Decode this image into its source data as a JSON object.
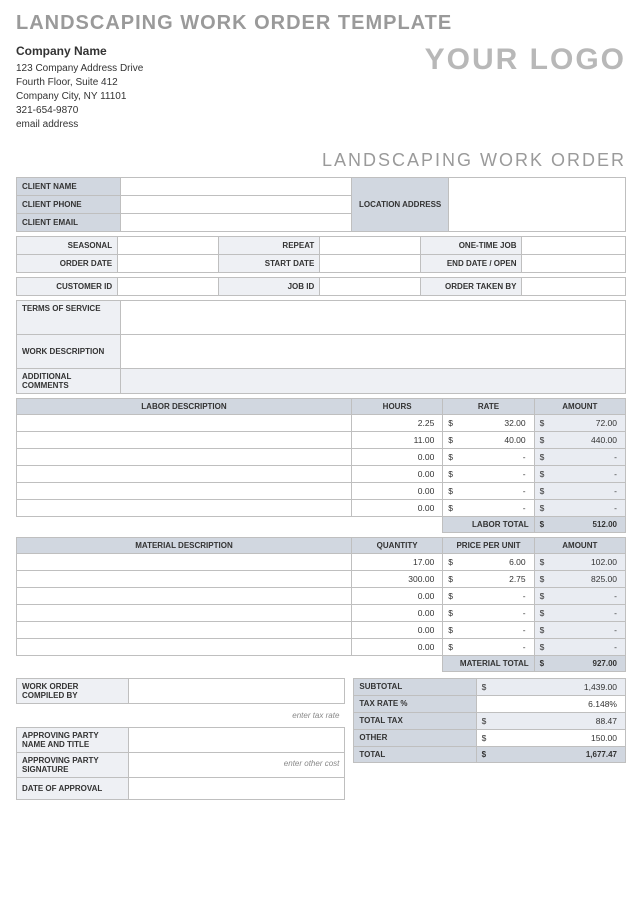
{
  "title": "LANDSCAPING WORK ORDER TEMPLATE",
  "company": {
    "name": "Company Name",
    "addr1": "123 Company Address Drive",
    "addr2": "Fourth Floor, Suite 412",
    "city": "Company City, NY  11101",
    "phone": "321-654-9870",
    "email": "email address"
  },
  "logo": "YOUR LOGO",
  "subtitle": "LANDSCAPING WORK ORDER",
  "client_labels": {
    "name": "CLIENT NAME",
    "phone": "CLIENT PHONE",
    "email": "CLIENT EMAIL",
    "location": "LOCATION ADDRESS"
  },
  "job_labels": {
    "seasonal": "SEASONAL",
    "repeat": "REPEAT",
    "onetime": "ONE-TIME JOB",
    "order_date": "ORDER DATE",
    "start_date": "START DATE",
    "end_date": "END DATE / OPEN",
    "customer_id": "CUSTOMER ID",
    "job_id": "JOB ID",
    "taken_by": "ORDER TAKEN BY"
  },
  "desc_labels": {
    "terms": "TERMS OF SERVICE",
    "work": "WORK DESCRIPTION",
    "comments": "ADDITIONAL COMMENTS"
  },
  "labor": {
    "headers": {
      "desc": "LABOR DESCRIPTION",
      "hours": "HOURS",
      "rate": "RATE",
      "amount": "AMOUNT"
    },
    "rows": [
      {
        "desc": "",
        "hours": "2.25",
        "rate": "32.00",
        "amount": "72.00"
      },
      {
        "desc": "",
        "hours": "11.00",
        "rate": "40.00",
        "amount": "440.00"
      },
      {
        "desc": "",
        "hours": "0.00",
        "rate": "-",
        "amount": "-"
      },
      {
        "desc": "",
        "hours": "0.00",
        "rate": "-",
        "amount": "-"
      },
      {
        "desc": "",
        "hours": "0.00",
        "rate": "-",
        "amount": "-"
      },
      {
        "desc": "",
        "hours": "0.00",
        "rate": "-",
        "amount": "-"
      }
    ],
    "total_label": "LABOR TOTAL",
    "total": "512.00"
  },
  "material": {
    "headers": {
      "desc": "MATERIAL DESCRIPTION",
      "qty": "QUANTITY",
      "price": "PRICE PER UNIT",
      "amount": "AMOUNT"
    },
    "rows": [
      {
        "desc": "",
        "qty": "17.00",
        "price": "6.00",
        "amount": "102.00"
      },
      {
        "desc": "",
        "qty": "300.00",
        "price": "2.75",
        "amount": "825.00"
      },
      {
        "desc": "",
        "qty": "0.00",
        "price": "-",
        "amount": "-"
      },
      {
        "desc": "",
        "qty": "0.00",
        "price": "-",
        "amount": "-"
      },
      {
        "desc": "",
        "qty": "0.00",
        "price": "-",
        "amount": "-"
      },
      {
        "desc": "",
        "qty": "0.00",
        "price": "-",
        "amount": "-"
      }
    ],
    "total_label": "MATERIAL TOTAL",
    "total": "927.00"
  },
  "signoff": {
    "compiled_by": "WORK ORDER COMPILED BY",
    "approving_name": "APPROVING PARTY NAME AND TITLE",
    "approving_sig": "APPROVING PARTY SIGNATURE",
    "date_approval": "DATE OF APPROVAL"
  },
  "hints": {
    "tax": "enter tax rate",
    "other": "enter other cost"
  },
  "totals": {
    "subtotal_label": "SUBTOTAL",
    "subtotal": "1,439.00",
    "taxrate_label": "TAX RATE %",
    "taxrate": "6.148%",
    "totaltax_label": "TOTAL TAX",
    "totaltax": "88.47",
    "other_label": "OTHER",
    "other": "150.00",
    "total_label": "TOTAL",
    "total": "1,677.47"
  },
  "currency": "$"
}
